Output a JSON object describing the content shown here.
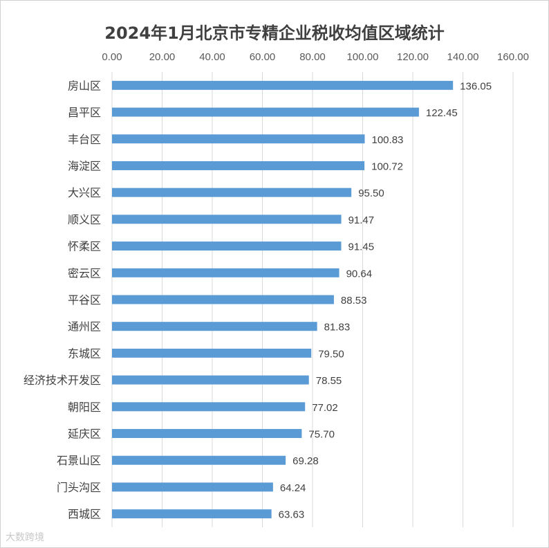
{
  "chart_data": {
    "type": "bar",
    "orientation": "horizontal",
    "title": "2024年1月北京市专精企业税收均值区域统计",
    "categories": [
      "房山区",
      "昌平区",
      "丰台区",
      "海淀区",
      "大兴区",
      "顺义区",
      "怀柔区",
      "密云区",
      "平谷区",
      "通州区",
      "东城区",
      "经济技术开发区",
      "朝阳区",
      "延庆区",
      "石景山区",
      "门头沟区",
      "西城区"
    ],
    "values": [
      136.05,
      122.45,
      100.83,
      100.72,
      95.5,
      91.47,
      91.45,
      90.64,
      88.53,
      81.83,
      79.5,
      78.55,
      77.02,
      75.7,
      69.28,
      64.24,
      63.63
    ],
    "value_labels": [
      "136.05",
      "122.45",
      "100.83",
      "100.72",
      "95.50",
      "91.47",
      "91.45",
      "90.64",
      "88.53",
      "81.83",
      "79.50",
      "78.55",
      "77.02",
      "75.70",
      "69.28",
      "64.24",
      "63.63"
    ],
    "xlim": [
      0,
      160
    ],
    "x_ticks": [
      "0.00",
      "20.00",
      "40.00",
      "60.00",
      "80.00",
      "100.00",
      "120.00",
      "140.00",
      "160.00"
    ],
    "x_axis_position": "top",
    "grid": true,
    "bar_color": "#5b9bd5",
    "legend": "none"
  },
  "watermark": "大数跨境"
}
